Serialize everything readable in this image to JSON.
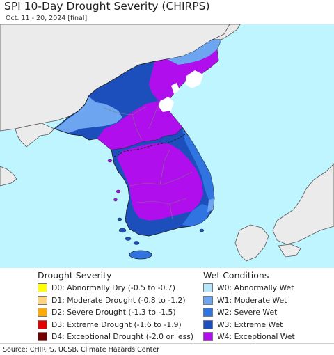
{
  "header": {
    "title": "SPI 10-Day Drought Severity (CHIRPS)",
    "subtitle": "Oct. 11 - 20, 2024 [final]"
  },
  "colors": {
    "ocean": "#bff5ff",
    "land_outside": "#ebebeb",
    "border": "#222222",
    "W4_exceptional_wet": "#b10eee",
    "W3_extreme_wet": "#1c4fbb",
    "W2_severe_wet": "#2f74e0",
    "W1_moderate_wet": "#6ea5f0",
    "W0_abnormally_wet": "#b7e6fb",
    "no_data": "#ffffff"
  },
  "legend": {
    "drought": {
      "title": "Drought Severity",
      "items": [
        {
          "label": "D0: Abnormally Dry (-0.5 to -0.7)",
          "color": "#ffff00"
        },
        {
          "label": "D1: Moderate Drought (-0.8 to -1.2)",
          "color": "#fcd37f"
        },
        {
          "label": "D2: Severe Drought (-1.3 to -1.5)",
          "color": "#ffaa00"
        },
        {
          "label": "D3: Extreme Drought (-1.6 to -1.9)",
          "color": "#e60000"
        },
        {
          "label": "D4: Exceptional Drought (-2.0 or less)",
          "color": "#730000"
        }
      ]
    },
    "wet": {
      "title": "Wet Conditions",
      "items": [
        {
          "label": "W0: Abnormally Wet",
          "color": "#b7e6fb"
        },
        {
          "label": "W1: Moderate Wet",
          "color": "#6ea5f0"
        },
        {
          "label": "W2: Severe Wet",
          "color": "#2f74e0"
        },
        {
          "label": "W3: Extreme Wet",
          "color": "#1c4fbb"
        },
        {
          "label": "W4: Exceptional Wet",
          "color": "#b10eee"
        }
      ]
    }
  },
  "footer": {
    "source": "Source: CHIRPS, UCSB, Climate Hazards Center"
  }
}
